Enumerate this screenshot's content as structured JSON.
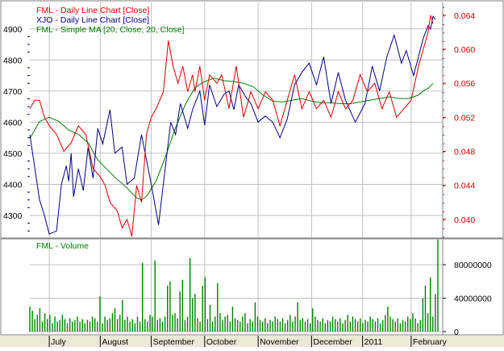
{
  "chart_data": [
    {
      "type": "line",
      "legend": [
        {
          "label": "FML - Daily Line Chart [Close]",
          "color": "#dd0000"
        },
        {
          "label": "XJO - Daily Line Chart [Close]",
          "color": "#000080"
        },
        {
          "label": "FML - Simple MA [20, Close, 20, Close]",
          "color": "#008000"
        }
      ],
      "legend_position": "top-left",
      "grid": true,
      "left_axis": {
        "ticks": [
          4300,
          4400,
          4500,
          4600,
          4700,
          4800,
          4900
        ],
        "range": [
          4230,
          4985
        ],
        "tick_color": "#000080"
      },
      "right_axis": {
        "ticks": [
          0.04,
          0.044,
          0.048,
          0.052,
          0.056,
          0.06,
          0.064
        ],
        "tick_labels": [
          "0.040",
          "0.044",
          "0.048",
          "0.052",
          "0.056",
          "0.060",
          "0.064"
        ],
        "range": [
          0.0379,
          0.0655
        ],
        "tick_color": "#cc0000"
      },
      "x_range": [
        0,
        170
      ],
      "series": [
        {
          "name": "XJO - Daily Line Chart [Close]",
          "axis": "left",
          "color": "#000080",
          "x": [
            0,
            4,
            6,
            8,
            11,
            13,
            15,
            16,
            17,
            18,
            20,
            22,
            24,
            26,
            28,
            30,
            33,
            35,
            38,
            40,
            43,
            46,
            50,
            53,
            56,
            58,
            60,
            62,
            65,
            67,
            70,
            72,
            74,
            77,
            80,
            82,
            84,
            86,
            89,
            91,
            94,
            97,
            100,
            103,
            106,
            109,
            112,
            115,
            118,
            121,
            124,
            127,
            130,
            134,
            138,
            141,
            144,
            147,
            150,
            153,
            155,
            158,
            160,
            162,
            164,
            165,
            166,
            167
          ],
          "values": [
            4560,
            4350,
            4300,
            4240,
            4250,
            4400,
            4460,
            4410,
            4500,
            4360,
            4450,
            4380,
            4520,
            4420,
            4580,
            4530,
            4640,
            4500,
            4520,
            4400,
            4420,
            4560,
            4400,
            4270,
            4470,
            4600,
            4560,
            4660,
            4580,
            4640,
            4700,
            4590,
            4720,
            4650,
            4690,
            4700,
            4640,
            4720,
            4680,
            4660,
            4600,
            4620,
            4600,
            4550,
            4610,
            4720,
            4760,
            4790,
            4720,
            4810,
            4660,
            4760,
            4670,
            4600,
            4660,
            4780,
            4700,
            4810,
            4880,
            4790,
            4830,
            4750,
            4810,
            4870,
            4910,
            4900,
            4940,
            4930
          ]
        },
        {
          "name": "FML - Daily Line Chart [Close]",
          "axis": "right",
          "color": "#dd0000",
          "x": [
            0,
            2,
            4,
            6,
            8,
            11,
            14,
            17,
            20,
            23,
            26,
            29,
            31,
            33,
            36,
            38,
            40,
            42,
            44,
            46,
            48,
            50,
            52,
            55,
            57,
            59,
            61,
            63,
            65,
            67,
            68,
            70,
            72,
            74,
            77,
            79,
            82,
            85,
            88,
            91,
            94,
            97,
            100,
            103,
            106,
            109,
            112,
            115,
            118,
            121,
            124,
            127,
            130,
            133,
            136,
            139,
            142,
            145,
            148,
            151,
            154,
            157,
            160,
            162,
            164,
            165,
            166
          ],
          "values": [
            0.053,
            0.054,
            0.054,
            0.052,
            0.051,
            0.05,
            0.048,
            0.049,
            0.051,
            0.05,
            0.046,
            0.045,
            0.044,
            0.042,
            0.041,
            0.039,
            0.04,
            0.038,
            0.044,
            0.042,
            0.05,
            0.052,
            0.053,
            0.055,
            0.061,
            0.058,
            0.056,
            0.058,
            0.055,
            0.057,
            0.055,
            0.058,
            0.054,
            0.057,
            0.056,
            0.057,
            0.053,
            0.058,
            0.052,
            0.055,
            0.053,
            0.055,
            0.054,
            0.051,
            0.054,
            0.057,
            0.053,
            0.055,
            0.053,
            0.054,
            0.052,
            0.055,
            0.053,
            0.054,
            0.057,
            0.055,
            0.056,
            0.053,
            0.055,
            0.052,
            0.053,
            0.054,
            0.058,
            0.06,
            0.062,
            0.064,
            0.063
          ]
        },
        {
          "name": "FML - Simple MA [20, Close, 20, Close]",
          "axis": "right",
          "color": "#008000",
          "x": [
            0,
            4,
            8,
            12,
            16,
            20,
            24,
            28,
            32,
            36,
            40,
            44,
            46,
            48,
            52,
            56,
            60,
            64,
            68,
            72,
            76,
            80,
            84,
            88,
            92,
            96,
            100,
            104,
            108,
            112,
            116,
            120,
            124,
            128,
            132,
            136,
            140,
            144,
            148,
            152,
            156,
            160,
            162,
            164,
            166
          ],
          "values": [
            0.0495,
            0.0515,
            0.052,
            0.0515,
            0.0505,
            0.05,
            0.049,
            0.047,
            0.0458,
            0.0447,
            0.0437,
            0.0425,
            0.0423,
            0.0427,
            0.0445,
            0.0475,
            0.0508,
            0.0535,
            0.0555,
            0.0562,
            0.0566,
            0.0563,
            0.0562,
            0.056,
            0.0556,
            0.0546,
            0.0539,
            0.0538,
            0.054,
            0.0542,
            0.0539,
            0.0537,
            0.0537,
            0.0536,
            0.0536,
            0.0538,
            0.054,
            0.0542,
            0.0544,
            0.0542,
            0.0542,
            0.0546,
            0.0551,
            0.0554,
            0.056
          ]
        }
      ]
    },
    {
      "type": "bar",
      "legend": [
        {
          "label": "FML - Volume",
          "color": "#008000"
        }
      ],
      "color": "#008000",
      "grid": true,
      "right_axis": {
        "ticks": [
          0,
          40000000,
          80000000
        ],
        "tick_labels": [
          "0",
          "40000000",
          "80000000"
        ],
        "range": [
          0,
          110000000
        ]
      },
      "x_range": [
        0,
        170
      ],
      "values": [
        30000000,
        25000000,
        15000000,
        20000000,
        28000000,
        12000000,
        22000000,
        15000000,
        20000000,
        10000000,
        18000000,
        12000000,
        14000000,
        20000000,
        15000000,
        10000000,
        16000000,
        12000000,
        14000000,
        18000000,
        12000000,
        15000000,
        10000000,
        14000000,
        12000000,
        18000000,
        16000000,
        12000000,
        42000000,
        10000000,
        18000000,
        14000000,
        16000000,
        22000000,
        28000000,
        15000000,
        20000000,
        38000000,
        14000000,
        18000000,
        12000000,
        15000000,
        10000000,
        18000000,
        12000000,
        82000000,
        15000000,
        12000000,
        20000000,
        18000000,
        85000000,
        14000000,
        16000000,
        12000000,
        18000000,
        55000000,
        60000000,
        20000000,
        22000000,
        16000000,
        48000000,
        62000000,
        14000000,
        18000000,
        88000000,
        40000000,
        45000000,
        16000000,
        12000000,
        55000000,
        65000000,
        15000000,
        32000000,
        12000000,
        18000000,
        58000000,
        22000000,
        14000000,
        18000000,
        20000000,
        12000000,
        30000000,
        16000000,
        14000000,
        12000000,
        18000000,
        22000000,
        10000000,
        15000000,
        12000000,
        35000000,
        18000000,
        14000000,
        12000000,
        16000000,
        10000000,
        14000000,
        12000000,
        18000000,
        15000000,
        12000000,
        16000000,
        10000000,
        14000000,
        20000000,
        12000000,
        18000000,
        35000000,
        14000000,
        16000000,
        12000000,
        15000000,
        10000000,
        28000000,
        18000000,
        14000000,
        12000000,
        16000000,
        10000000,
        14000000,
        12000000,
        18000000,
        15000000,
        12000000,
        16000000,
        10000000,
        14000000,
        20000000,
        12000000,
        18000000,
        15000000,
        12000000,
        16000000,
        10000000,
        14000000,
        12000000,
        18000000,
        15000000,
        12000000,
        16000000,
        10000000,
        14000000,
        20000000,
        30000000,
        18000000,
        15000000,
        12000000,
        16000000,
        10000000,
        14000000,
        12000000,
        18000000,
        15000000,
        22000000,
        16000000,
        10000000,
        14000000,
        40000000,
        55000000,
        22000000,
        65000000,
        18000000,
        45000000,
        110000000
      ]
    }
  ],
  "x_axis": {
    "months": [
      {
        "label": "July",
        "x": 8
      },
      {
        "label": "August",
        "x": 29
      },
      {
        "label": "September",
        "x": 50
      },
      {
        "label": "October",
        "x": 72
      },
      {
        "label": "November",
        "x": 94
      },
      {
        "label": "December",
        "x": 116
      },
      {
        "label": "2011",
        "x": 137
      },
      {
        "label": "February",
        "x": 157
      }
    ]
  },
  "colors": {
    "background": "#ffffff",
    "grid": "#c0c0c0",
    "frame": "#808080",
    "footer_bg": "#ece9d8"
  }
}
